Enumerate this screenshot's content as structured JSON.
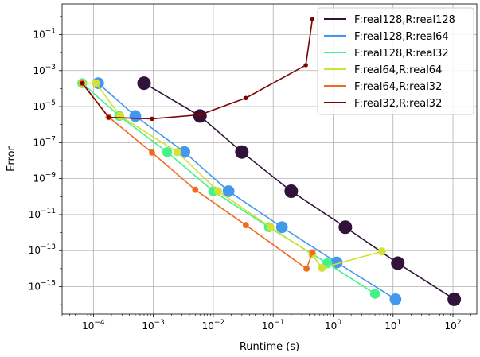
{
  "chart_data": {
    "type": "line",
    "xlabel": "Runtime (s)",
    "ylabel": "Error",
    "xscale": "log",
    "yscale": "log",
    "xlim": [
      3e-05,
      250
    ],
    "ylim": [
      3e-17,
      5
    ],
    "x_ticks": [
      {
        "value": 0.0001,
        "label": "10",
        "exp": "−4"
      },
      {
        "value": 0.001,
        "label": "10",
        "exp": "−3"
      },
      {
        "value": 0.01,
        "label": "10",
        "exp": "−2"
      },
      {
        "value": 0.1,
        "label": "10",
        "exp": "−1"
      },
      {
        "value": 1,
        "label": "10",
        "exp": "0"
      },
      {
        "value": 10,
        "label": "10",
        "exp": "1"
      },
      {
        "value": 100,
        "label": "10",
        "exp": "2"
      }
    ],
    "y_ticks": [
      {
        "value": 1e-15,
        "label": "10",
        "exp": "−15"
      },
      {
        "value": 1e-13,
        "label": "10",
        "exp": "−13"
      },
      {
        "value": 1e-11,
        "label": "10",
        "exp": "−11"
      },
      {
        "value": 1e-09,
        "label": "10",
        "exp": "−9"
      },
      {
        "value": 1e-07,
        "label": "10",
        "exp": "−7"
      },
      {
        "value": 1e-05,
        "label": "10",
        "exp": "−5"
      },
      {
        "value": 0.001,
        "label": "10",
        "exp": "−3"
      },
      {
        "value": 0.1,
        "label": "10",
        "exp": "−1"
      }
    ],
    "grid": true,
    "legend_position": "top-right",
    "series": [
      {
        "name": "F:real128,R:real128",
        "color": "#30123b",
        "points": [
          [
            0.0007,
            0.0002
          ],
          [
            0.006,
            3e-06
          ],
          [
            0.03,
            3e-08
          ],
          [
            0.2,
            2e-10
          ],
          [
            1.6,
            2e-12
          ],
          [
            12,
            2e-14
          ],
          [
            105,
            2e-16
          ]
        ]
      },
      {
        "name": "F:real128,R:real64",
        "color": "#4297ee",
        "points": [
          [
            0.00012,
            0.0002
          ],
          [
            0.0005,
            3e-06
          ],
          [
            0.0033,
            3e-08
          ],
          [
            0.018,
            2e-10
          ],
          [
            0.14,
            2e-12
          ],
          [
            1.15,
            2.2e-14
          ],
          [
            11,
            2e-16
          ]
        ]
      },
      {
        "name": "F:real128,R:real32",
        "color": "#42f387",
        "points": [
          [
            6.5e-05,
            0.0002
          ],
          [
            0.00027,
            3e-06
          ],
          [
            0.0017,
            3e-08
          ],
          [
            0.01,
            2e-10
          ],
          [
            0.085,
            2e-12
          ],
          [
            0.8,
            2e-14
          ],
          [
            5,
            4e-16
          ]
        ]
      },
      {
        "name": "F:real64,R:real64",
        "color": "#d3e035",
        "points": [
          [
            6.5e-05,
            0.0002
          ],
          [
            0.00011,
            0.0002
          ],
          [
            0.00028,
            3e-06
          ],
          [
            0.0025,
            3e-08
          ],
          [
            0.012,
            2e-10
          ],
          [
            0.09,
            2e-12
          ],
          [
            0.45,
            6e-14
          ],
          [
            0.65,
            1.1e-14
          ],
          [
            6.5,
            9e-14
          ]
        ]
      },
      {
        "name": "F:real64,R:real32",
        "color": "#f06a22",
        "points": [
          [
            6.5e-05,
            0.0002
          ],
          [
            0.00018,
            2.6e-06
          ],
          [
            0.00095,
            2.8e-08
          ],
          [
            0.005,
            2.4e-10
          ],
          [
            0.035,
            2.6e-12
          ],
          [
            0.36,
            1e-14
          ],
          [
            0.45,
            8e-14
          ]
        ]
      },
      {
        "name": "F:real32,R:real32",
        "color": "#7a0403",
        "points": [
          [
            6.5e-05,
            0.0002
          ],
          [
            0.00018,
            2.5e-06
          ],
          [
            0.00095,
            2.1e-06
          ],
          [
            0.006,
            3.5e-06
          ],
          [
            0.035,
            3e-05
          ],
          [
            0.35,
            0.002
          ],
          [
            0.45,
            0.7
          ]
        ]
      }
    ],
    "legend_marker": "—"
  }
}
